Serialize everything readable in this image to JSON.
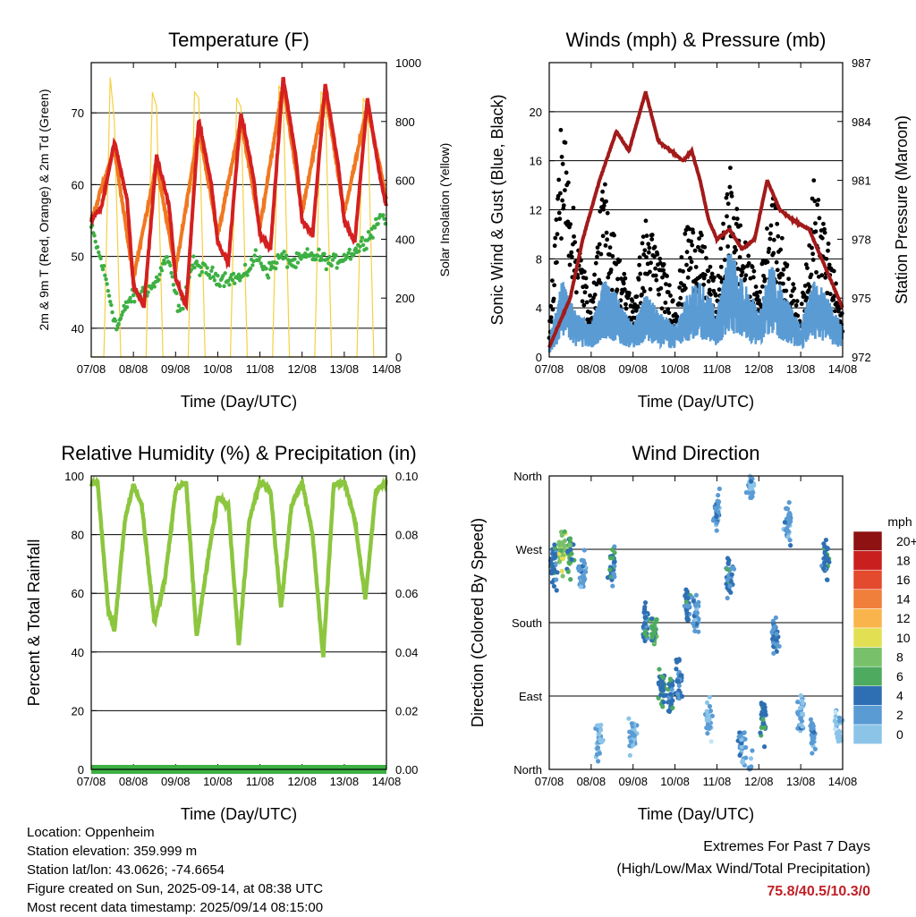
{
  "days": [
    "07/08",
    "08/08",
    "09/08",
    "10/08",
    "11/08",
    "12/08",
    "13/08",
    "14/08"
  ],
  "xlabel": "Time (Day/UTC)",
  "panels": {
    "temp": {
      "title": "Temperature (F)",
      "ylabel_left": "2m & 9m T (Red, Orange) & 2m Td (Green)",
      "ylabel_right": "Solar Insolation (Yellow)",
      "yticks_left": [
        "40",
        "50",
        "60",
        "70"
      ],
      "yticks_right": [
        "0",
        "200",
        "400",
        "600",
        "800",
        "1000"
      ]
    },
    "wind": {
      "title": "Winds (mph) & Pressure (mb)",
      "ylabel_left": "Sonic Wind & Gust (Blue, Black)",
      "ylabel_right": "Station Pressure (Maroon)",
      "yticks_left": [
        "0",
        "4",
        "8",
        "12",
        "16",
        "20"
      ],
      "yticks_right": [
        "972",
        "975",
        "978",
        "981",
        "984",
        "987"
      ]
    },
    "rh": {
      "title": "Relative Humidity (%) & Precipitation (in)",
      "ylabel_left": "Percent & Total Rainfall",
      "yticks_left": [
        "0",
        "20",
        "40",
        "60",
        "80",
        "100"
      ],
      "yticks_right": [
        "0.00",
        "0.02",
        "0.04",
        "0.06",
        "0.08",
        "0.10"
      ]
    },
    "dir": {
      "title": "Wind Direction",
      "ylabel_left": "Direction (Colored By Speed)",
      "yticks_left": [
        "North",
        "East",
        "South",
        "West",
        "North"
      ],
      "legend_title": "mph",
      "legend_labels": [
        "20+",
        "18",
        "16",
        "14",
        "12",
        "10",
        "8",
        "6",
        "4",
        "2",
        "0"
      ]
    }
  },
  "chart_data": [
    {
      "type": "line",
      "title": "Temperature (F)",
      "x_unit": "days since 07/08 00 UTC",
      "ylim": [
        36,
        77
      ],
      "y2lim": [
        0,
        1000
      ],
      "series": [
        {
          "name": "2m T",
          "color": "#d42020",
          "x": [
            0,
            0.25,
            0.55,
            0.85,
            1.0,
            1.25,
            1.55,
            1.85,
            2.0,
            2.25,
            2.55,
            2.85,
            3.0,
            3.25,
            3.55,
            3.85,
            4.0,
            4.25,
            4.55,
            4.85,
            5.0,
            5.25,
            5.55,
            5.85,
            6.0,
            6.25,
            6.55,
            6.85,
            7.0
          ],
          "values": [
            55,
            57,
            66,
            58,
            46,
            43,
            64,
            57,
            47,
            43,
            69,
            60,
            52,
            49,
            70,
            61,
            53,
            51,
            75,
            64,
            55,
            53,
            74,
            63,
            55,
            52,
            72,
            61,
            57
          ]
        },
        {
          "name": "9m T",
          "color": "#f07820",
          "x": [
            0,
            0.55,
            1.0,
            1.55,
            2.0,
            2.55,
            3.0,
            3.55,
            4.0,
            4.55,
            5.0,
            5.55,
            6.0,
            6.55,
            7.0
          ],
          "values": [
            55,
            65,
            47,
            63,
            48,
            68,
            53,
            69,
            54,
            74,
            56,
            73,
            56,
            71,
            58
          ]
        },
        {
          "name": "2m Td",
          "color": "#3cb043",
          "x": [
            0,
            0.3,
            0.6,
            0.9,
            1.2,
            1.5,
            1.8,
            2.1,
            2.4,
            2.7,
            3.0,
            3.3,
            3.6,
            3.9,
            4.2,
            4.5,
            4.8,
            5.1,
            5.4,
            5.7,
            6.0,
            6.3,
            6.6,
            6.9,
            7.0
          ],
          "values": [
            54,
            48,
            40,
            44,
            45,
            46,
            50,
            42,
            49,
            48,
            47,
            47,
            47,
            50,
            48,
            50,
            49,
            50,
            50,
            49,
            50,
            51,
            53,
            56,
            55
          ]
        },
        {
          "name": "Solar Insolation",
          "color": "#f5d040",
          "axis": "right",
          "x": [
            0.3,
            0.45,
            0.55,
            0.7,
            1.3,
            1.45,
            1.55,
            1.7,
            2.3,
            2.45,
            2.55,
            2.7,
            3.3,
            3.45,
            3.55,
            3.7,
            4.3,
            4.45,
            4.55,
            4.7,
            5.3,
            5.45,
            5.55,
            5.7,
            6.3,
            6.45,
            6.55,
            6.7
          ],
          "values": [
            0,
            950,
            800,
            0,
            0,
            900,
            850,
            0,
            0,
            900,
            880,
            0,
            0,
            880,
            850,
            0,
            0,
            920,
            900,
            0,
            0,
            900,
            880,
            0,
            0,
            880,
            850,
            0
          ]
        }
      ]
    },
    {
      "type": "line",
      "title": "Winds (mph) & Pressure (mb)",
      "x_unit": "days since 07/08 00 UTC",
      "ylim": [
        0,
        24
      ],
      "y2lim": [
        972,
        987
      ],
      "series": [
        {
          "name": "Wind",
          "color": "#5a9bd4",
          "x": [
            0,
            0.3,
            0.6,
            1.0,
            1.3,
            1.6,
            2.0,
            2.3,
            2.6,
            3.0,
            3.3,
            3.6,
            4.0,
            4.3,
            4.6,
            5.0,
            5.3,
            5.6,
            6.0,
            6.3,
            6.6,
            7.0
          ],
          "values": [
            1,
            5,
            3,
            2,
            5,
            4,
            2,
            4,
            3,
            2,
            4,
            5,
            3,
            7,
            5,
            3,
            6,
            4,
            2,
            5,
            4,
            2
          ]
        },
        {
          "name": "Gust",
          "color": "#000000",
          "x": [
            0,
            0.3,
            0.6,
            1.0,
            1.3,
            1.6,
            2.0,
            2.3,
            2.6,
            3.0,
            3.3,
            3.6,
            4.0,
            4.3,
            4.6,
            5.0,
            5.3,
            5.6,
            6.0,
            6.3,
            6.6,
            7.0
          ],
          "values": [
            2,
            18,
            10,
            4,
            13,
            8,
            4,
            10,
            8,
            4,
            10,
            9,
            5,
            14,
            9,
            5,
            12,
            8,
            3,
            13,
            9,
            3
          ]
        },
        {
          "name": "Station Pressure",
          "color": "#a31a1a",
          "axis": "right",
          "x": [
            0,
            0.5,
            0.8,
            1.2,
            1.6,
            1.9,
            2.3,
            2.6,
            2.9,
            3.2,
            3.4,
            3.6,
            3.8,
            4.0,
            4.3,
            4.6,
            4.9,
            5.2,
            5.5,
            5.8,
            6.2,
            6.6,
            7.0
          ],
          "values": [
            972.5,
            975,
            978,
            981,
            983.5,
            982.5,
            985.5,
            983,
            982.5,
            982,
            982.5,
            981,
            979,
            978,
            978.5,
            977.5,
            978,
            981,
            979.5,
            979,
            978.5,
            976.5,
            974.5
          ]
        }
      ]
    },
    {
      "type": "line",
      "title": "Relative Humidity (%) & Precipitation (in)",
      "x_unit": "days since 07/08 00 UTC",
      "ylim": [
        0,
        100
      ],
      "y2lim": [
        0,
        0.1
      ],
      "series": [
        {
          "name": "Relative Humidity",
          "color": "#8cc63f",
          "x": [
            0,
            0.15,
            0.4,
            0.55,
            0.8,
            1.0,
            1.2,
            1.5,
            1.75,
            2.0,
            2.25,
            2.5,
            2.75,
            3.0,
            3.25,
            3.5,
            3.75,
            4.0,
            4.25,
            4.5,
            4.75,
            5.0,
            5.25,
            5.5,
            5.75,
            6.0,
            6.25,
            6.5,
            6.75,
            7.0
          ],
          "values": [
            97,
            98,
            55,
            47,
            85,
            97,
            90,
            50,
            65,
            95,
            98,
            45,
            70,
            93,
            90,
            42,
            85,
            98,
            95,
            55,
            90,
            98,
            80,
            38,
            97,
            98,
            85,
            58,
            95,
            98
          ]
        },
        {
          "name": "Total Precipitation",
          "color": "#3cb043",
          "axis": "right",
          "x": [
            0,
            7
          ],
          "values": [
            0,
            0
          ]
        }
      ]
    },
    {
      "type": "scatter",
      "title": "Wind Direction",
      "x_unit": "days since 07/08 00 UTC",
      "y_unit": "degrees (0 = North at bottom, 360 = North at top)",
      "ylim": [
        0,
        360
      ],
      "series": [
        {
          "name": "Direction",
          "x": [
            0.1,
            0.3,
            0.5,
            0.8,
            1.2,
            1.5,
            2.0,
            2.3,
            2.5,
            2.7,
            2.9,
            3.1,
            3.3,
            3.5,
            3.8,
            4.0,
            4.3,
            4.6,
            4.8,
            5.1,
            5.4,
            5.7,
            6.0,
            6.3,
            6.6,
            6.9
          ],
          "values": [
            250,
            270,
            260,
            240,
            30,
            250,
            40,
            180,
            170,
            100,
            90,
            110,
            200,
            190,
            60,
            320,
            240,
            30,
            350,
            60,
            160,
            300,
            70,
            40,
            260,
            50
          ],
          "speeds": [
            6,
            10,
            8,
            4,
            3,
            6,
            3,
            6,
            8,
            7,
            6,
            5,
            6,
            4,
            3,
            4,
            6,
            4,
            3,
            6,
            5,
            4,
            3,
            4,
            6,
            2
          ]
        }
      ]
    }
  ],
  "footer": {
    "location": "Location: Oppenheim",
    "elevation": "Station elevation: 359.999 m",
    "latlon": "Station lat/lon: 43.0626; -74.6654",
    "created": "Figure created on Sun, 2025-09-14, at 08:38 UTC",
    "recent": "Most recent data timestamp: 2025/09/14 08:15:00"
  },
  "extremes": {
    "title": "Extremes For Past 7 Days",
    "subtitle": "(High/Low/Max Wind/Total Precipitation)",
    "values": "75.8/40.5/10.3/0",
    "value_color": "#c02026"
  },
  "speed_colors": [
    "#fde0f5",
    "#c1e4f7",
    "#8cc4e8",
    "#5a9bd4",
    "#2e6fb3",
    "#4daa5f",
    "#78c16a",
    "#e2e052",
    "#f9b44c",
    "#f07f3b",
    "#e34a2e",
    "#c9201f",
    "#8e1212"
  ]
}
